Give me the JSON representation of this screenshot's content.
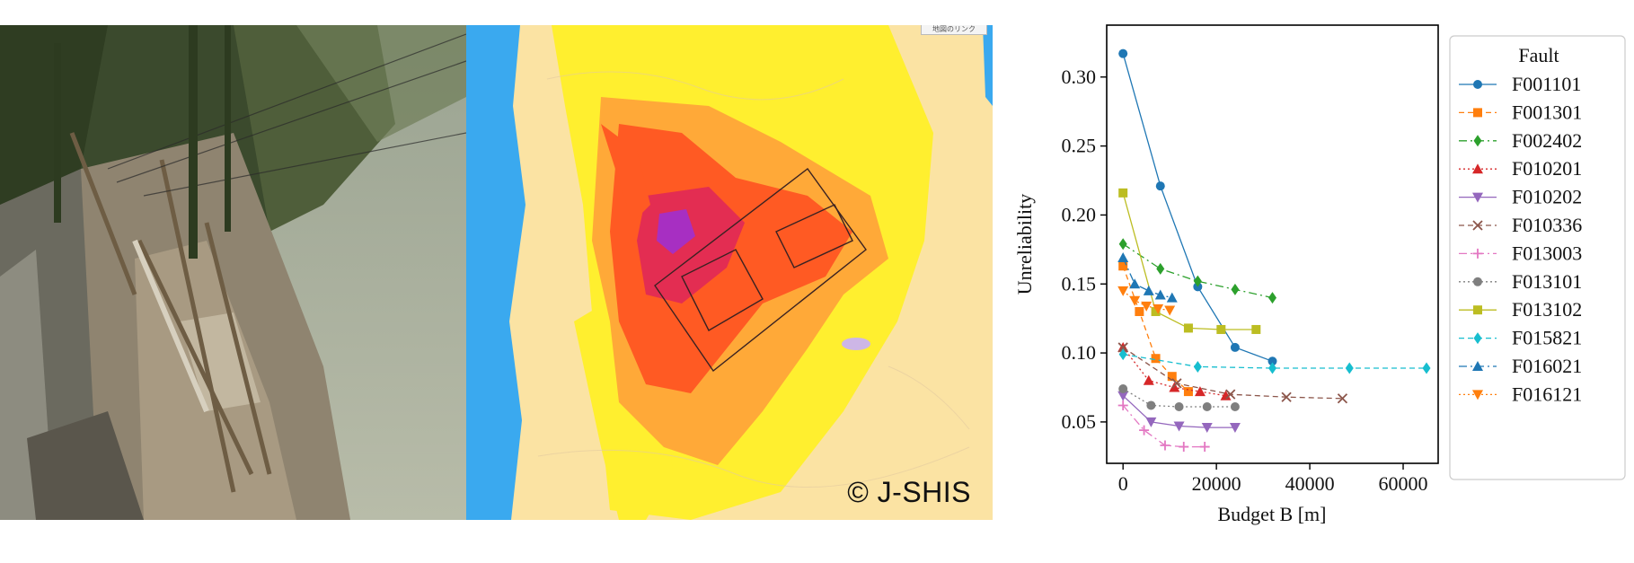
{
  "figure": {
    "map_credit": "© J-SHIS",
    "map_badge": "地図のリンク"
  },
  "chart_data": {
    "type": "line",
    "xlabel": "Budget B [m]",
    "ylabel": "Unreliability",
    "xlim": [
      -3500,
      67500
    ],
    "ylim": [
      0.02,
      0.3376
    ],
    "xticks": [
      0,
      20000,
      40000,
      60000
    ],
    "xtick_labels": [
      "0",
      "20000",
      "40000",
      "60000"
    ],
    "yticks": [
      0.05,
      0.1,
      0.15,
      0.2,
      0.25,
      0.3
    ],
    "ytick_labels": [
      "0.05",
      "0.10",
      "0.15",
      "0.20",
      "0.25",
      "0.30"
    ],
    "grid": false,
    "legend": {
      "title": "Fault",
      "placement": "outside-right"
    },
    "series": [
      {
        "name": "F001101",
        "color": "#1f77b4",
        "marker": "circle",
        "dash": "",
        "x": [
          0,
          8000,
          16000,
          24000,
          32000
        ],
        "y": [
          0.317,
          0.221,
          0.148,
          0.104,
          0.094
        ]
      },
      {
        "name": "F001301",
        "color": "#ff7f0e",
        "marker": "square",
        "dash": "6,4",
        "x": [
          0,
          3500,
          7000,
          10500,
          14000
        ],
        "y": [
          0.163,
          0.13,
          0.096,
          0.083,
          0.072
        ]
      },
      {
        "name": "F002402",
        "color": "#2ca02c",
        "marker": "diamond",
        "dash": "9,4,2,4",
        "x": [
          0,
          8000,
          16000,
          24000,
          32000
        ],
        "y": [
          0.179,
          0.161,
          0.152,
          0.146,
          0.14
        ]
      },
      {
        "name": "F010201",
        "color": "#d62728",
        "marker": "triangle-up",
        "dash": "2,3",
        "x": [
          0,
          5500,
          11000,
          16500,
          22000
        ],
        "y": [
          0.104,
          0.08,
          0.075,
          0.072,
          0.069
        ]
      },
      {
        "name": "F010202",
        "color": "#9467bd",
        "marker": "triangle-down",
        "dash": "",
        "x": [
          0,
          6000,
          12000,
          18000,
          24000
        ],
        "y": [
          0.069,
          0.05,
          0.047,
          0.046,
          0.046
        ]
      },
      {
        "name": "F010336",
        "color": "#8c564b",
        "marker": "x",
        "dash": "6,4",
        "x": [
          0,
          11500,
          23000,
          35000,
          47000
        ],
        "y": [
          0.104,
          0.078,
          0.07,
          0.068,
          0.067
        ]
      },
      {
        "name": "F013003",
        "color": "#e377c2",
        "marker": "plus",
        "dash": "9,4,2,4",
        "x": [
          0,
          4500,
          9000,
          13000,
          17500
        ],
        "y": [
          0.062,
          0.044,
          0.033,
          0.032,
          0.032
        ]
      },
      {
        "name": "F013101",
        "color": "#7f7f7f",
        "marker": "circle",
        "dash": "2,3",
        "x": [
          0,
          6000,
          12000,
          18000,
          24000
        ],
        "y": [
          0.074,
          0.062,
          0.061,
          0.061,
          0.061
        ]
      },
      {
        "name": "F013102",
        "color": "#bcbd22",
        "marker": "square",
        "dash": "",
        "x": [
          0,
          7000,
          14000,
          21000,
          28500
        ],
        "y": [
          0.216,
          0.13,
          0.118,
          0.117,
          0.117
        ]
      },
      {
        "name": "F015821",
        "color": "#17becf",
        "marker": "diamond",
        "dash": "6,4",
        "x": [
          0,
          16000,
          32000,
          48500,
          65000
        ],
        "y": [
          0.099,
          0.09,
          0.089,
          0.089,
          0.089
        ]
      },
      {
        "name": "F016021",
        "color": "#1f77b4",
        "marker": "triangle-up",
        "dash": "9,4,2,4",
        "x": [
          0,
          2500,
          5500,
          8000,
          10500
        ],
        "y": [
          0.169,
          0.15,
          0.145,
          0.142,
          0.14
        ]
      },
      {
        "name": "F016121",
        "color": "#ff7f0e",
        "marker": "triangle-down",
        "dash": "2,3",
        "x": [
          0,
          2500,
          5000,
          7500,
          10000
        ],
        "y": [
          0.145,
          0.138,
          0.134,
          0.132,
          0.131
        ]
      }
    ]
  }
}
